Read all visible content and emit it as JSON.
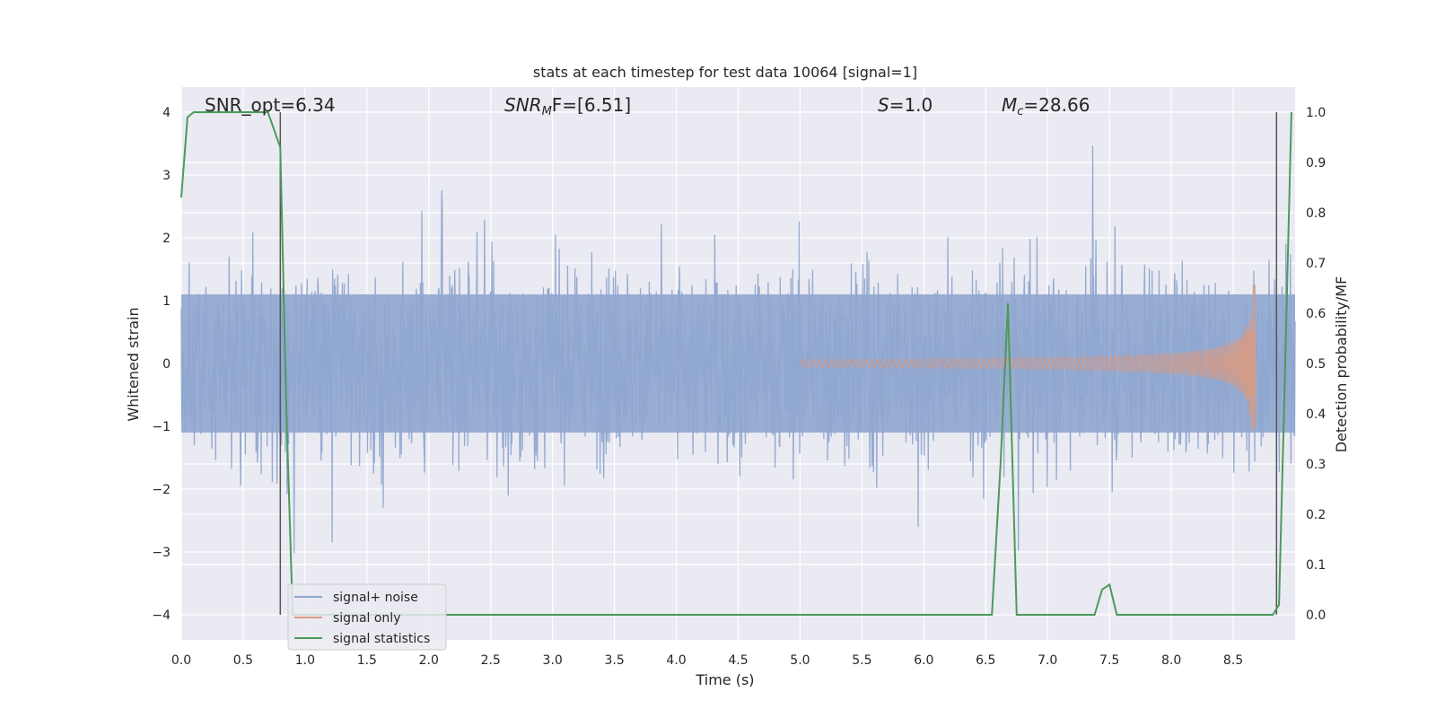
{
  "chart_data": {
    "type": "line",
    "title": "stats at each timestep for test data 10064 [signal=1]",
    "xlabel": "Time (s)",
    "ylabel_left": "Whitened strain",
    "ylabel_right": "Detection probability/MF",
    "xlim": [
      0,
      9.0
    ],
    "ylim_left": [
      -4.4,
      4.4
    ],
    "ylim_right": [
      -0.05,
      1.05
    ],
    "x_ticks": [
      "0.0",
      "0.5",
      "1.0",
      "1.5",
      "2.0",
      "2.5",
      "3.0",
      "3.5",
      "4.0",
      "4.5",
      "5.0",
      "5.5",
      "6.0",
      "6.5",
      "7.0",
      "7.5",
      "8.0",
      "8.5"
    ],
    "x_tick_values": [
      0,
      0.5,
      1,
      1.5,
      2,
      2.5,
      3,
      3.5,
      4,
      4.5,
      5,
      5.5,
      6,
      6.5,
      7,
      7.5,
      8,
      8.5
    ],
    "y_left_ticks": [
      "4",
      "3",
      "2",
      "1",
      "0",
      "−1",
      "−2",
      "−3",
      "−4"
    ],
    "y_left_tick_values": [
      4,
      3,
      2,
      1,
      0,
      -1,
      -2,
      -3,
      -4
    ],
    "y_right_ticks": [
      "1.0",
      "0.9",
      "0.8",
      "0.7",
      "0.6",
      "0.5",
      "0.4",
      "0.3",
      "0.2",
      "0.1",
      "0.0"
    ],
    "y_right_tick_values": [
      1.0,
      0.9,
      0.8,
      0.7,
      0.6,
      0.5,
      0.4,
      0.3,
      0.2,
      0.1,
      0.0
    ],
    "annotations": {
      "snr_opt": "SNR_opt=6.34",
      "snr_mf_main": "SNR",
      "snr_mf_sub": "M",
      "snr_mf_rest": "F=[6.51]",
      "s_italic": "S",
      "s_rest": "=1.0",
      "mc_main": "M",
      "mc_sub": "c",
      "mc_rest": "=28.66"
    },
    "vertical_lines_x": [
      0.8,
      8.85
    ],
    "legend_position": "lower-left",
    "series": [
      {
        "name": "signal+ noise",
        "color": "#8fa6cf",
        "description_envelope": {
          "x": [
            0,
            9
          ],
          "typical_amplitude": 1.6,
          "peak_max": 4.0,
          "peak_min": -3.8
        }
      },
      {
        "name": "signal only",
        "color": "#dd9a7e",
        "chirp": {
          "start": 5.0,
          "end": 8.68,
          "max_amplitude": 1.4
        }
      },
      {
        "name": "signal statistics",
        "color": "#4c9a5a",
        "x": [
          0.0,
          0.05,
          0.1,
          0.15,
          0.2,
          0.3,
          0.4,
          0.5,
          0.6,
          0.7,
          0.8,
          0.85,
          0.9,
          1.0,
          2.0,
          3.0,
          4.0,
          5.0,
          6.0,
          6.5,
          6.55,
          6.62,
          6.68,
          6.75,
          6.8,
          7.0,
          7.3,
          7.38,
          7.44,
          7.5,
          7.56,
          7.62,
          8.0,
          8.5,
          8.82,
          8.87,
          8.92,
          8.97
        ],
        "values": [
          0.83,
          0.99,
          1.0,
          1.0,
          1.0,
          1.0,
          1.0,
          1.0,
          1.0,
          1.0,
          0.93,
          0.4,
          0.0,
          0.0,
          0.0,
          0.0,
          0.0,
          0.0,
          0.0,
          0.0,
          0.0,
          0.3,
          0.62,
          0.0,
          0.0,
          0.0,
          0.0,
          0.0,
          0.05,
          0.06,
          0.0,
          0.0,
          0.0,
          0.0,
          0.0,
          0.02,
          0.5,
          1.0
        ]
      }
    ]
  }
}
